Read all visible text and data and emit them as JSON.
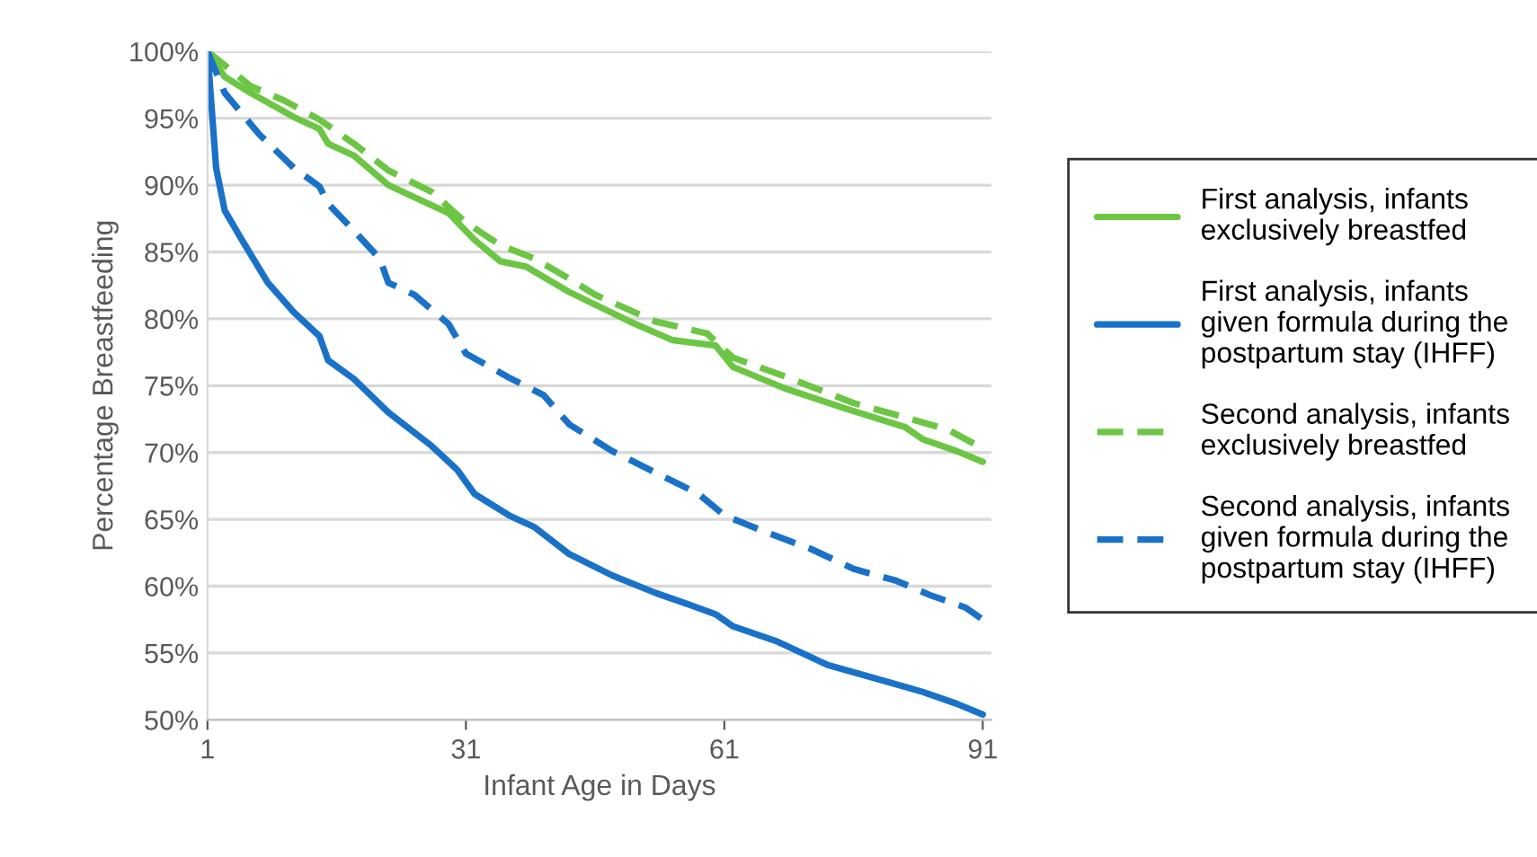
{
  "chart_data": {
    "type": "line",
    "xlabel": "Infant Age in Days",
    "ylabel": "Percentage Breastfeeding",
    "xlim": [
      1,
      92
    ],
    "xticks": [
      1,
      31,
      61,
      91
    ],
    "ylim": [
      50,
      100
    ],
    "yticks": [
      {
        "value": 50,
        "label": "50%"
      },
      {
        "value": 55,
        "label": "55%"
      },
      {
        "value": 60,
        "label": "60%"
      },
      {
        "value": 65,
        "label": "65%"
      },
      {
        "value": 70,
        "label": "70%"
      },
      {
        "value": 75,
        "label": "75%"
      },
      {
        "value": 80,
        "label": "80%"
      },
      {
        "value": 85,
        "label": "85%"
      },
      {
        "value": 90,
        "label": "90%"
      },
      {
        "value": 95,
        "label": "95%"
      },
      {
        "value": 100,
        "label": "100%"
      }
    ],
    "grid": "y",
    "legend": "right",
    "marker": "none",
    "series": [
      {
        "name": "First analysis, infants exclusively breastfed",
        "color": "#6cc644",
        "line_style": "solid",
        "x": [
          1,
          3,
          6,
          11,
          14,
          15,
          18,
          22,
          25,
          29,
          32,
          35,
          38,
          43,
          50,
          55,
          60,
          62,
          68,
          75,
          82,
          84,
          88,
          91
        ],
        "values": [
          100,
          98.1,
          96.9,
          95.1,
          94.2,
          93.1,
          92.2,
          90.0,
          89.1,
          87.9,
          85.9,
          84.3,
          83.9,
          82.0,
          79.8,
          78.4,
          78.0,
          76.4,
          74.8,
          73.3,
          71.9,
          71.0,
          70.1,
          69.3
        ]
      },
      {
        "name": "First analysis, infants given formula during the postpartum stay (IHFF)",
        "color": "#1a72c8",
        "line_style": "solid",
        "x": [
          1,
          2,
          3,
          5,
          8,
          11,
          14,
          15,
          18,
          22,
          27,
          30,
          32,
          36,
          39,
          43,
          48,
          53,
          57,
          60,
          62,
          67,
          73,
          78,
          84,
          88,
          91
        ],
        "values": [
          100,
          91.3,
          88.1,
          85.9,
          82.7,
          80.5,
          78.7,
          76.9,
          75.5,
          73.0,
          70.5,
          68.7,
          66.9,
          65.3,
          64.4,
          62.4,
          60.8,
          59.5,
          58.6,
          57.9,
          57.0,
          55.9,
          54.1,
          53.2,
          52.1,
          51.2,
          50.4
        ]
      },
      {
        "name": "Second analysis, infants exclusively breastfed",
        "color": "#6cc644",
        "line_style": "dashed",
        "x": [
          1,
          6,
          10,
          14,
          18,
          22,
          27,
          31,
          35,
          39,
          43,
          46,
          53,
          59,
          62,
          68,
          76,
          81,
          87,
          91
        ],
        "values": [
          100,
          97.4,
          96.3,
          94.9,
          93.1,
          91.1,
          89.5,
          87.2,
          85.5,
          84.5,
          83.0,
          81.8,
          79.8,
          78.9,
          77.1,
          75.7,
          73.7,
          72.8,
          71.7,
          70.3
        ]
      },
      {
        "name": "Second analysis, infants given formula during the postpartum stay (IHFF)",
        "color": "#1a72c8",
        "line_style": "dashed",
        "x": [
          1,
          3,
          7,
          11,
          14,
          15,
          18,
          21,
          22,
          25,
          29,
          31,
          36,
          40,
          43,
          48,
          53,
          58,
          61,
          66,
          71,
          76,
          81,
          85,
          89,
          91
        ],
        "values": [
          100,
          96.9,
          93.8,
          91.3,
          89.9,
          88.6,
          86.6,
          84.5,
          82.7,
          81.8,
          79.6,
          77.4,
          75.6,
          74.3,
          72.1,
          70.1,
          68.5,
          66.9,
          65.3,
          64.0,
          62.8,
          61.3,
          60.4,
          59.3,
          58.4,
          57.5
        ]
      }
    ]
  }
}
